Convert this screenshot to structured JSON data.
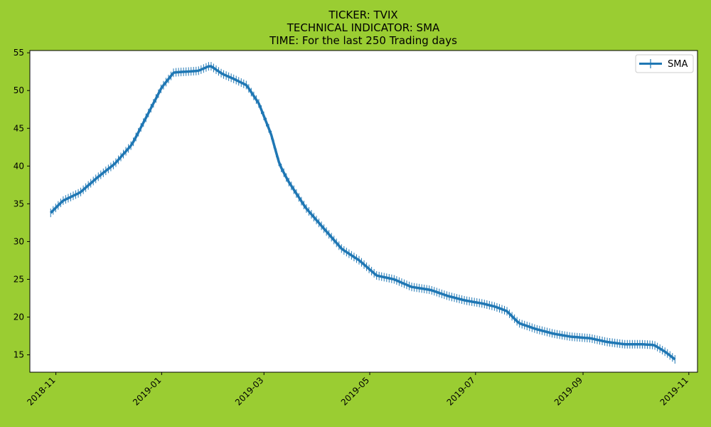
{
  "chart_data": {
    "type": "line",
    "title_lines": [
      "TICKER:  TVIX",
      "TECHNICAL INDICATOR:  SMA",
      "TIME: For the last 250 Trading days"
    ],
    "xlabel": "",
    "ylabel": "",
    "xlim": [
      "2018-10-17",
      "2019-11-06"
    ],
    "ylim": [
      12.7,
      55.3
    ],
    "x_ticks": [
      "2018-11",
      "2019-01",
      "2019-03",
      "2019-05",
      "2019-07",
      "2019-09",
      "2019-11"
    ],
    "y_ticks": [
      15,
      20,
      25,
      30,
      35,
      40,
      45,
      50,
      55
    ],
    "legend": {
      "position": "upper right",
      "label": "SMA"
    },
    "background_color": "#9acd32",
    "line_color": "#1f77b4",
    "series": [
      {
        "name": "SMA",
        "marker": "|",
        "x": [
          "2018-10-29",
          "2018-11-05",
          "2018-11-15",
          "2018-11-25",
          "2018-12-05",
          "2018-12-15",
          "2018-12-25",
          "2019-01-01",
          "2019-01-08",
          "2019-01-15",
          "2019-01-22",
          "2019-01-29",
          "2019-02-05",
          "2019-02-12",
          "2019-02-19",
          "2019-02-26",
          "2019-03-05",
          "2019-03-10",
          "2019-03-15",
          "2019-03-25",
          "2019-04-05",
          "2019-04-15",
          "2019-04-25",
          "2019-05-05",
          "2019-05-15",
          "2019-05-25",
          "2019-06-05",
          "2019-06-15",
          "2019-06-25",
          "2019-07-05",
          "2019-07-12",
          "2019-07-19",
          "2019-07-26",
          "2019-08-05",
          "2019-08-15",
          "2019-08-25",
          "2019-09-05",
          "2019-09-15",
          "2019-09-25",
          "2019-10-05",
          "2019-10-12",
          "2019-10-19",
          "2019-10-24"
        ],
        "values": [
          33.8,
          35.4,
          36.5,
          38.5,
          40.3,
          42.9,
          47.3,
          50.4,
          52.4,
          52.5,
          52.6,
          53.3,
          52.2,
          51.5,
          50.7,
          48.3,
          44.3,
          40.2,
          38.0,
          34.5,
          31.6,
          29.0,
          27.5,
          25.5,
          25.0,
          24.0,
          23.6,
          22.8,
          22.2,
          21.8,
          21.4,
          20.8,
          19.2,
          18.4,
          17.8,
          17.4,
          17.2,
          16.7,
          16.4,
          16.4,
          16.3,
          15.3,
          14.4
        ]
      }
    ]
  }
}
